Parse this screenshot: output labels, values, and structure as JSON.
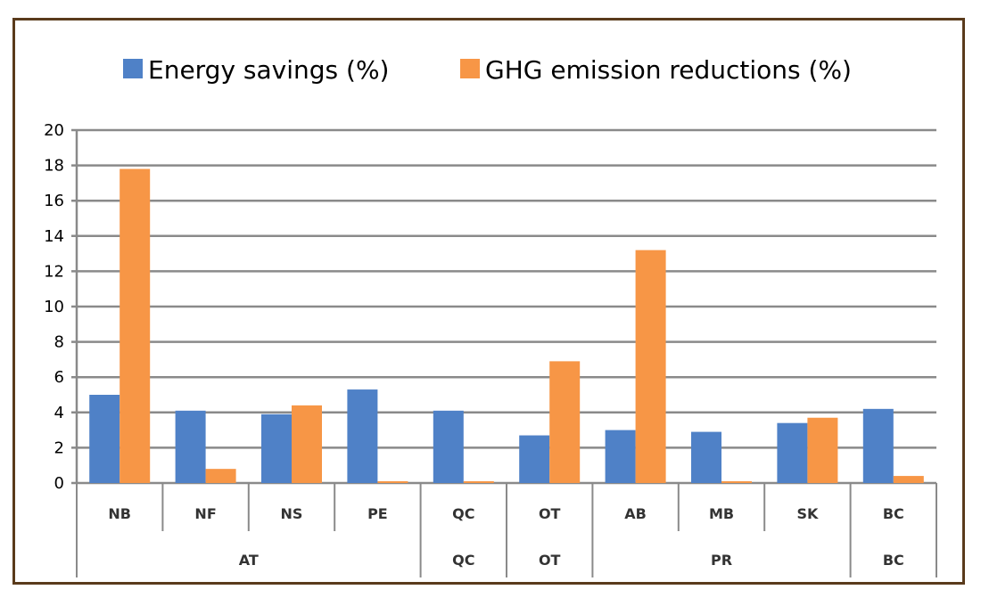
{
  "chart_data": {
    "type": "bar",
    "title": "",
    "xlabel": "",
    "ylabel": "",
    "ylim": [
      0,
      20
    ],
    "yticks": [
      "0",
      "2",
      "4",
      "6",
      "8",
      "10",
      "12",
      "14",
      "16",
      "18",
      "20"
    ],
    "grid": true,
    "legend_position": "top",
    "categories": [
      "NB",
      "NF",
      "NS",
      "PE",
      "QC",
      "OT",
      "AB",
      "MB",
      "SK",
      "BC"
    ],
    "groups": [
      {
        "label": "AT",
        "span": 4
      },
      {
        "label": "QC",
        "span": 1
      },
      {
        "label": "OT",
        "span": 1
      },
      {
        "label": "PR",
        "span": 3
      },
      {
        "label": "BC",
        "span": 1
      }
    ],
    "series": [
      {
        "name": "Energy savings (%)",
        "color": "#4f81c7",
        "values": [
          5.0,
          4.1,
          3.9,
          5.3,
          4.1,
          2.7,
          3.0,
          2.9,
          3.4,
          4.2
        ]
      },
      {
        "name": "GHG emission reductions (%)",
        "color": "#f79646",
        "values": [
          17.8,
          0.8,
          4.4,
          0.1,
          0.1,
          6.9,
          13.2,
          0.1,
          3.7,
          0.4
        ]
      }
    ]
  }
}
